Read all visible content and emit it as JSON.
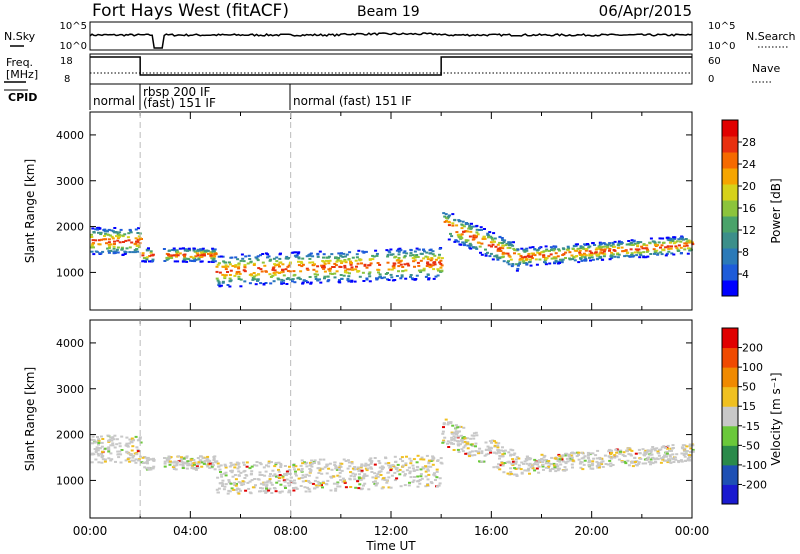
{
  "header": {
    "title": "Fort Hays West (fitACF)",
    "beam": "Beam 19",
    "date": "06/Apr/2015"
  },
  "noise_panel": {
    "left_label": "N.Sky",
    "left_tick_top": "10^5",
    "left_tick_bottom": "10^0",
    "right_label": "N.Search",
    "right_tick_top": "10^5",
    "right_tick_bottom": "10^0"
  },
  "freq_panel": {
    "left_label_1": "Freq.",
    "left_label_2": "[MHz]",
    "left_tick_top": "18",
    "left_tick_bottom": "8",
    "right_label": "Nave",
    "right_tick_top": "60",
    "right_tick_bottom": "0"
  },
  "cpid": {
    "label": "CPID",
    "segments": [
      {
        "start_hour": 0,
        "line1": "normal",
        "line2": ""
      },
      {
        "start_hour": 2,
        "line1": "rbsp 200 IF",
        "line2": "(fast) 151 IF"
      },
      {
        "start_hour": 8,
        "line1": "normal (fast) 151 IF",
        "line2": ""
      }
    ]
  },
  "chart_data": [
    {
      "type": "heatmap",
      "title": "",
      "ylabel": "Slant Range [km]",
      "xlabel": "",
      "ylim": [
        180,
        4500
      ],
      "xlim_hours": [
        0,
        24
      ],
      "y_ticks": [
        "1000",
        "2000",
        "3000",
        "4000"
      ],
      "colorbar_label": "Power [dB]",
      "colorbar_ticks": [
        "28",
        "24",
        "20",
        "16",
        "12",
        "8",
        "4"
      ],
      "colorbar_colors": [
        "#0000ff",
        "#1e5cd9",
        "#2b7ab8",
        "#3c8f8a",
        "#4aa36a",
        "#8cc43c",
        "#d6d21a",
        "#f5a500",
        "#f56a00",
        "#e83010",
        "#e00000"
      ],
      "grid": false
    },
    {
      "type": "heatmap",
      "title": "",
      "ylabel": "Slant Range [km]",
      "xlabel": "Time UT",
      "ylim": [
        180,
        4500
      ],
      "xlim_hours": [
        0,
        24
      ],
      "y_ticks": [
        "1000",
        "2000",
        "3000",
        "4000"
      ],
      "x_ticks": [
        "00:00",
        "04:00",
        "08:00",
        "12:00",
        "16:00",
        "20:00",
        "00:00"
      ],
      "colorbar_label": "Velocity [m s⁻¹]",
      "colorbar_ticks": [
        "200",
        "100",
        "50",
        "15",
        "-15",
        "-50",
        "-100",
        "-200"
      ],
      "colorbar_colors": [
        "#1a1ad0",
        "#1e50b4",
        "#2a8a4a",
        "#6ac83a",
        "#c8c8c8",
        "#f0c020",
        "#f08a00",
        "#f04a00",
        "#e00000"
      ],
      "grid": false
    }
  ]
}
